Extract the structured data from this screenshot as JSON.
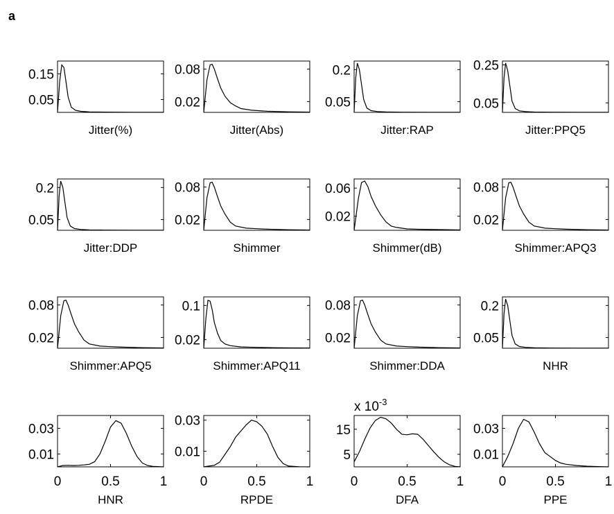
{
  "panel_label": "a",
  "chart_data": [
    {
      "type": "line",
      "xlabel": "Jitter(%)",
      "yticks": [
        0.15,
        0.05
      ],
      "ylim": [
        0,
        0.2
      ],
      "xlim": [
        0,
        1
      ],
      "x": [
        0,
        0.02,
        0.04,
        0.06,
        0.08,
        0.1,
        0.13,
        0.17,
        0.22,
        0.3,
        0.45,
        0.7,
        1
      ],
      "y": [
        0,
        0.12,
        0.185,
        0.175,
        0.12,
        0.06,
        0.02,
        0.008,
        0.004,
        0.002,
        0.001,
        0.0005,
        0.0003
      ]
    },
    {
      "type": "line",
      "xlabel": "Jitter(Abs)",
      "yticks": [
        0.08,
        0.02
      ],
      "ylim": [
        0,
        0.095
      ],
      "xlim": [
        0,
        1
      ],
      "x": [
        0,
        0.03,
        0.06,
        0.08,
        0.1,
        0.13,
        0.16,
        0.2,
        0.25,
        0.3,
        0.35,
        0.45,
        0.6,
        0.8,
        1
      ],
      "y": [
        0,
        0.06,
        0.088,
        0.089,
        0.08,
        0.062,
        0.045,
        0.03,
        0.018,
        0.012,
        0.007,
        0.004,
        0.002,
        0.001,
        0.0005
      ]
    },
    {
      "type": "line",
      "xlabel": "Jitter:RAP",
      "yticks": [
        0.2,
        0.05
      ],
      "ylim": [
        0,
        0.24
      ],
      "xlim": [
        0,
        1
      ],
      "x": [
        0,
        0.015,
        0.03,
        0.05,
        0.07,
        0.09,
        0.12,
        0.16,
        0.22,
        0.3,
        0.45,
        0.7,
        1
      ],
      "y": [
        0,
        0.16,
        0.23,
        0.2,
        0.13,
        0.06,
        0.02,
        0.008,
        0.004,
        0.002,
        0.001,
        0.0005,
        0.0003
      ]
    },
    {
      "type": "line",
      "xlabel": "Jitter:PPQ5",
      "yticks": [
        0.25,
        0.05
      ],
      "ylim": [
        0,
        0.27
      ],
      "xlim": [
        0,
        1
      ],
      "x": [
        0,
        0.015,
        0.03,
        0.05,
        0.07,
        0.09,
        0.12,
        0.16,
        0.22,
        0.3,
        0.45,
        0.7,
        1
      ],
      "y": [
        0,
        0.18,
        0.26,
        0.22,
        0.14,
        0.06,
        0.02,
        0.008,
        0.004,
        0.002,
        0.001,
        0.0005,
        0.0003
      ]
    },
    {
      "type": "line",
      "xlabel": "Jitter:DDP",
      "yticks": [
        0.2,
        0.05
      ],
      "ylim": [
        0,
        0.24
      ],
      "xlim": [
        0,
        1
      ],
      "x": [
        0,
        0.015,
        0.03,
        0.05,
        0.07,
        0.09,
        0.12,
        0.16,
        0.22,
        0.3,
        0.45,
        0.7,
        1
      ],
      "y": [
        0,
        0.16,
        0.23,
        0.2,
        0.13,
        0.06,
        0.02,
        0.008,
        0.004,
        0.002,
        0.001,
        0.0005,
        0.0003
      ]
    },
    {
      "type": "line",
      "xlabel": "Shimmer",
      "yticks": [
        0.08,
        0.02
      ],
      "ylim": [
        0,
        0.095
      ],
      "xlim": [
        0,
        1
      ],
      "x": [
        0,
        0.03,
        0.06,
        0.08,
        0.1,
        0.13,
        0.16,
        0.2,
        0.25,
        0.3,
        0.4,
        0.5,
        0.6,
        0.8,
        1
      ],
      "y": [
        0,
        0.06,
        0.088,
        0.089,
        0.08,
        0.062,
        0.045,
        0.03,
        0.015,
        0.008,
        0.004,
        0.003,
        0.002,
        0.001,
        0.0005
      ]
    },
    {
      "type": "line",
      "xlabel": "Shimmer(dB)",
      "yticks": [
        0.06,
        0.02
      ],
      "ylim": [
        0,
        0.073
      ],
      "xlim": [
        0,
        1
      ],
      "x": [
        0,
        0.04,
        0.07,
        0.1,
        0.13,
        0.16,
        0.2,
        0.25,
        0.3,
        0.35,
        0.4,
        0.5,
        0.6,
        0.8,
        1
      ],
      "y": [
        0,
        0.045,
        0.068,
        0.07,
        0.062,
        0.048,
        0.035,
        0.022,
        0.012,
        0.006,
        0.004,
        0.002,
        0.0015,
        0.001,
        0.0005
      ]
    },
    {
      "type": "line",
      "xlabel": "Shimmer:APQ3",
      "yticks": [
        0.08,
        0.02
      ],
      "ylim": [
        0,
        0.095
      ],
      "xlim": [
        0,
        1
      ],
      "x": [
        0,
        0.03,
        0.06,
        0.08,
        0.1,
        0.13,
        0.16,
        0.2,
        0.25,
        0.3,
        0.4,
        0.5,
        0.6,
        0.8,
        1
      ],
      "y": [
        0,
        0.06,
        0.088,
        0.089,
        0.08,
        0.062,
        0.045,
        0.03,
        0.015,
        0.008,
        0.004,
        0.003,
        0.002,
        0.001,
        0.0005
      ]
    },
    {
      "type": "line",
      "xlabel": "Shimmer:APQ5",
      "yticks": [
        0.08,
        0.02
      ],
      "ylim": [
        0,
        0.095
      ],
      "xlim": [
        0,
        1
      ],
      "x": [
        0,
        0.03,
        0.06,
        0.08,
        0.1,
        0.13,
        0.16,
        0.2,
        0.25,
        0.3,
        0.4,
        0.5,
        0.6,
        0.8,
        1
      ],
      "y": [
        0,
        0.06,
        0.088,
        0.089,
        0.08,
        0.062,
        0.045,
        0.03,
        0.015,
        0.008,
        0.004,
        0.003,
        0.002,
        0.001,
        0.0005
      ]
    },
    {
      "type": "line",
      "xlabel": "Shimmer:APQ11",
      "yticks": [
        0.1,
        0.02
      ],
      "ylim": [
        0,
        0.12
      ],
      "xlim": [
        0,
        1
      ],
      "x": [
        0,
        0.02,
        0.04,
        0.06,
        0.08,
        0.1,
        0.13,
        0.16,
        0.2,
        0.25,
        0.35,
        0.5,
        0.7,
        1
      ],
      "y": [
        0,
        0.07,
        0.112,
        0.11,
        0.09,
        0.06,
        0.035,
        0.018,
        0.01,
        0.006,
        0.003,
        0.002,
        0.001,
        0.0005
      ]
    },
    {
      "type": "line",
      "xlabel": "Shimmer:DDA",
      "yticks": [
        0.08,
        0.02
      ],
      "ylim": [
        0,
        0.095
      ],
      "xlim": [
        0,
        1
      ],
      "x": [
        0,
        0.03,
        0.06,
        0.08,
        0.1,
        0.13,
        0.16,
        0.2,
        0.25,
        0.3,
        0.4,
        0.5,
        0.6,
        0.8,
        1
      ],
      "y": [
        0,
        0.06,
        0.088,
        0.089,
        0.08,
        0.062,
        0.045,
        0.03,
        0.015,
        0.008,
        0.004,
        0.003,
        0.002,
        0.001,
        0.0005
      ]
    },
    {
      "type": "line",
      "xlabel": "NHR",
      "yticks": [
        0.2,
        0.05
      ],
      "ylim": [
        0,
        0.24
      ],
      "xlim": [
        0,
        1
      ],
      "x": [
        0,
        0.015,
        0.03,
        0.05,
        0.07,
        0.09,
        0.12,
        0.16,
        0.22,
        0.3,
        0.45,
        0.7,
        1
      ],
      "y": [
        0,
        0.16,
        0.23,
        0.2,
        0.13,
        0.06,
        0.02,
        0.008,
        0.004,
        0.002,
        0.001,
        0.0005,
        0.0003
      ]
    },
    {
      "type": "line",
      "xlabel": "HNR",
      "yticks": [
        0.03,
        0.01
      ],
      "ylim": [
        0,
        0.04
      ],
      "xticks": [
        0,
        0.5,
        1
      ],
      "xlim": [
        0,
        1
      ],
      "x": [
        0,
        0.05,
        0.1,
        0.15,
        0.2,
        0.25,
        0.3,
        0.35,
        0.4,
        0.45,
        0.5,
        0.55,
        0.6,
        0.65,
        0.7,
        0.75,
        0.8,
        0.85,
        0.9,
        1
      ],
      "y": [
        0.0,
        0.001,
        0.0012,
        0.001,
        0.0012,
        0.0015,
        0.002,
        0.004,
        0.01,
        0.02,
        0.031,
        0.036,
        0.034,
        0.026,
        0.016,
        0.008,
        0.003,
        0.001,
        0.0003,
        0.0
      ]
    },
    {
      "type": "line",
      "xlabel": "RPDE",
      "yticks": [
        0.03,
        0.01
      ],
      "ylim": [
        0,
        0.033
      ],
      "xticks": [
        0,
        0.5,
        1
      ],
      "xlim": [
        0,
        1
      ],
      "x": [
        0,
        0.05,
        0.1,
        0.15,
        0.2,
        0.25,
        0.3,
        0.35,
        0.4,
        0.45,
        0.5,
        0.55,
        0.6,
        0.65,
        0.7,
        0.75,
        0.8,
        0.9,
        1
      ],
      "y": [
        0,
        0.0005,
        0.001,
        0.003,
        0.008,
        0.013,
        0.019,
        0.023,
        0.027,
        0.03,
        0.029,
        0.026,
        0.021,
        0.013,
        0.006,
        0.002,
        0.0005,
        0.0001,
        0
      ]
    },
    {
      "type": "line",
      "xlabel": "DFA",
      "yticks": [
        15,
        5
      ],
      "ylim": [
        0,
        20.5
      ],
      "xticks": [
        0,
        0.5,
        1
      ],
      "xlim": [
        0,
        1
      ],
      "x": [
        0,
        0.05,
        0.1,
        0.15,
        0.2,
        0.25,
        0.3,
        0.35,
        0.4,
        0.45,
        0.5,
        0.55,
        0.6,
        0.65,
        0.7,
        0.75,
        0.8,
        0.85,
        0.9,
        0.95,
        1
      ],
      "y": [
        2,
        6,
        11,
        15.5,
        18.5,
        19.8,
        19.2,
        17.5,
        15,
        13,
        12.8,
        13.2,
        13.0,
        11,
        8.5,
        6,
        3.8,
        2,
        0.8,
        0.2,
        0
      ],
      "scale_label": "x 10",
      "scale_exponent": "-3"
    },
    {
      "type": "line",
      "xlabel": "PPE",
      "yticks": [
        0.03,
        0.01
      ],
      "ylim": [
        0,
        0.04
      ],
      "xticks": [
        0,
        0.5,
        1
      ],
      "xlim": [
        0,
        1
      ],
      "x": [
        0,
        0.05,
        0.1,
        0.15,
        0.2,
        0.25,
        0.3,
        0.35,
        0.4,
        0.45,
        0.5,
        0.55,
        0.6,
        0.7,
        0.8,
        0.9,
        1
      ],
      "y": [
        0,
        0.008,
        0.018,
        0.03,
        0.037,
        0.035,
        0.027,
        0.018,
        0.011,
        0.008,
        0.005,
        0.003,
        0.002,
        0.001,
        0.0005,
        0.0002,
        0
      ]
    }
  ]
}
